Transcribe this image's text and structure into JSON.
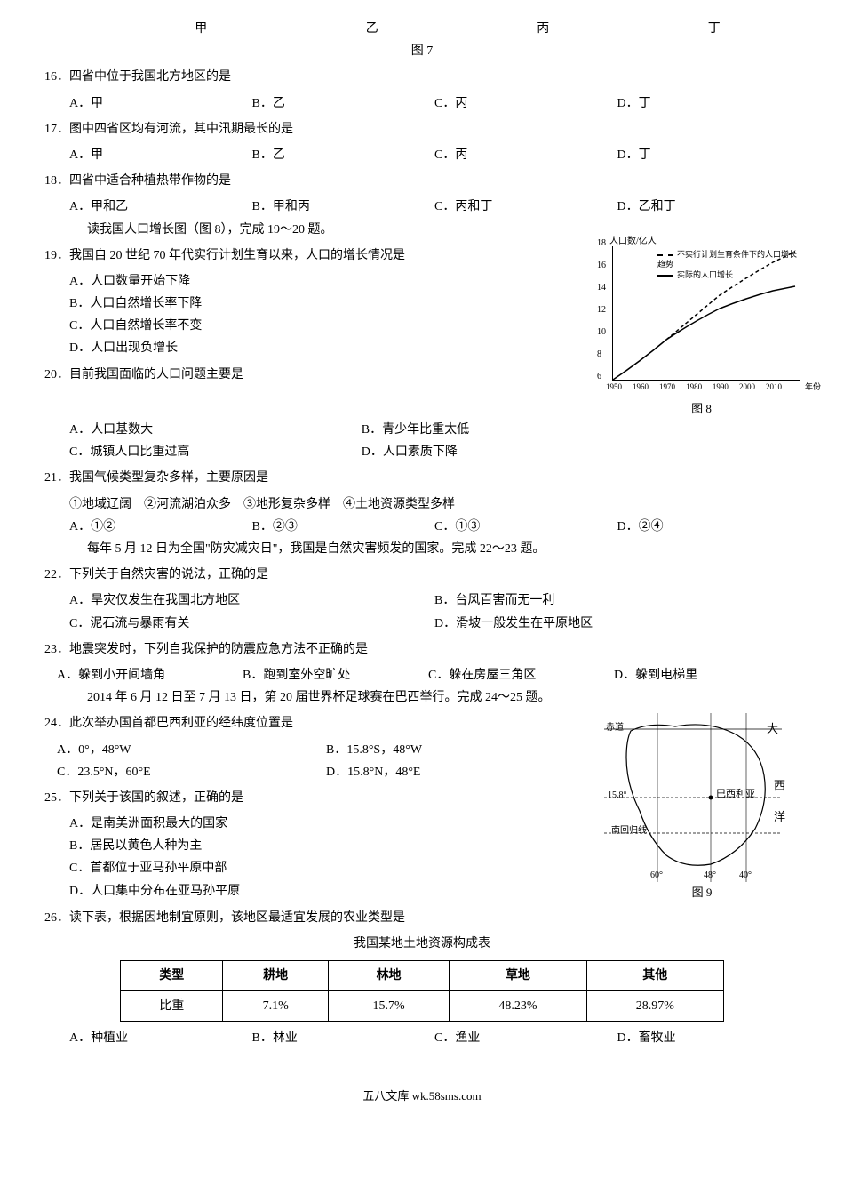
{
  "top_row": {
    "labels": [
      "甲",
      "乙",
      "丙",
      "丁"
    ],
    "fig_label": "图 7"
  },
  "q16": {
    "text": "16．四省中位于我国北方地区的是",
    "opts": [
      "A．甲",
      "B．乙",
      "C．丙",
      "D．丁"
    ]
  },
  "q17": {
    "text": "17．图中四省区均有河流，其中汛期最长的是",
    "opts": [
      "A．甲",
      "B．乙",
      "C．丙",
      "D．丁"
    ]
  },
  "q18": {
    "text": "18．四省中适合种植热带作物的是",
    "opts": [
      "A．甲和乙",
      "B．甲和丙",
      "C．丙和丁",
      "D．乙和丁"
    ]
  },
  "intro19": "读我国人口增长图（图 8），完成 19～20 题。",
  "q19": {
    "text": "19．我国自 20 世纪 70 年代实行计划生育以来，人口的增长情况是",
    "opts": [
      "A．人口数量开始下降",
      "B．人口自然增长率下降",
      "C．人口自然增长率不变",
      "D．人口出现负增长"
    ]
  },
  "q20": {
    "text": "20．目前我国面临的人口问题主要是",
    "opts": [
      "A．人口基数大",
      "B．青少年比重太低",
      "C．城镇人口比重过高",
      "D．人口素质下降"
    ]
  },
  "q21": {
    "text": "21．我国气候类型复杂多样，主要原因是",
    "sub": "①地域辽阔　②河流湖泊众多　③地形复杂多样　④土地资源类型多样",
    "opts": [
      "A．①②",
      "B．②③",
      "C．①③",
      "D．②④"
    ]
  },
  "intro22": "每年 5 月 12 日为全国\"防灾减灾日\"，我国是自然灾害频发的国家。完成 22～23 题。",
  "q22": {
    "text": "22．下列关于自然灾害的说法，正确的是",
    "opts": [
      "A．旱灾仅发生在我国北方地区",
      "B．台风百害而无一利",
      "C．泥石流与暴雨有关",
      "D．滑坡一般发生在平原地区"
    ]
  },
  "q23": {
    "text": "23．地震突发时，下列自我保护的防震应急方法不正确的是",
    "opts": [
      "A．躲到小开间墙角",
      "B．跑到室外空旷处",
      "C．躲在房屋三角区",
      "D．躲到电梯里"
    ]
  },
  "intro24": "2014 年 6 月 12 日至 7 月 13 日，第 20 届世界杯足球赛在巴西举行。完成 24～25 题。",
  "q24": {
    "text": "24．此次举办国首都巴西利亚的经纬度位置是",
    "opts": [
      "A．0°，48°W",
      "B．15.8°S，48°W",
      "C．23.5°N，60°E",
      "D．15.8°N，48°E"
    ]
  },
  "q25": {
    "text": "25．下列关于该国的叙述，正确的是",
    "opts": [
      "A．是南美洲面积最大的国家",
      "B．居民以黄色人种为主",
      "C．首都位于亚马孙平原中部",
      "D．人口集中分布在亚马孙平原"
    ]
  },
  "q26": {
    "text": "26．读下表，根据因地制宜原则，该地区最适宜发展的农业类型是",
    "table_title": "我国某地土地资源构成表",
    "headers": [
      "类型",
      "耕地",
      "林地",
      "草地",
      "其他"
    ],
    "row_label": "比重",
    "row": [
      "7.1%",
      "15.7%",
      "48.23%",
      "28.97%"
    ],
    "opts": [
      "A．种植业",
      "B．林业",
      "C．渔业",
      "D．畜牧业"
    ]
  },
  "chart8": {
    "ylabel": "人口数/亿人",
    "yticks": [
      {
        "v": "6",
        "p": 0
      },
      {
        "v": "8",
        "p": 16.7
      },
      {
        "v": "10",
        "p": 33.3
      },
      {
        "v": "12",
        "p": 50
      },
      {
        "v": "14",
        "p": 66.7
      },
      {
        "v": "16",
        "p": 83.3
      },
      {
        "v": "18",
        "p": 100
      }
    ],
    "xticks": [
      {
        "v": "1950",
        "p": 0
      },
      {
        "v": "1960",
        "p": 14.3
      },
      {
        "v": "1970",
        "p": 28.6
      },
      {
        "v": "1980",
        "p": 42.9
      },
      {
        "v": "1990",
        "p": 57.1
      },
      {
        "v": "2000",
        "p": 71.4
      },
      {
        "v": "2010",
        "p": 85.7
      }
    ],
    "xlabel": "年份",
    "legend_dash": "不实行计划生育条件下的人口增长趋势",
    "legend_solid": "实际的人口增长",
    "caption": "图 8"
  },
  "map9": {
    "equator": "赤道",
    "tropic": "南回归线",
    "city": "巴西利亚",
    "lat": "15.8°",
    "lons": [
      "60°",
      "48°",
      "40°"
    ],
    "dirs": {
      "n": "大",
      "e": "西",
      "w": "",
      "s": "洋"
    },
    "caption": "图 9"
  },
  "footer": "五八文库 wk.58sms.com"
}
